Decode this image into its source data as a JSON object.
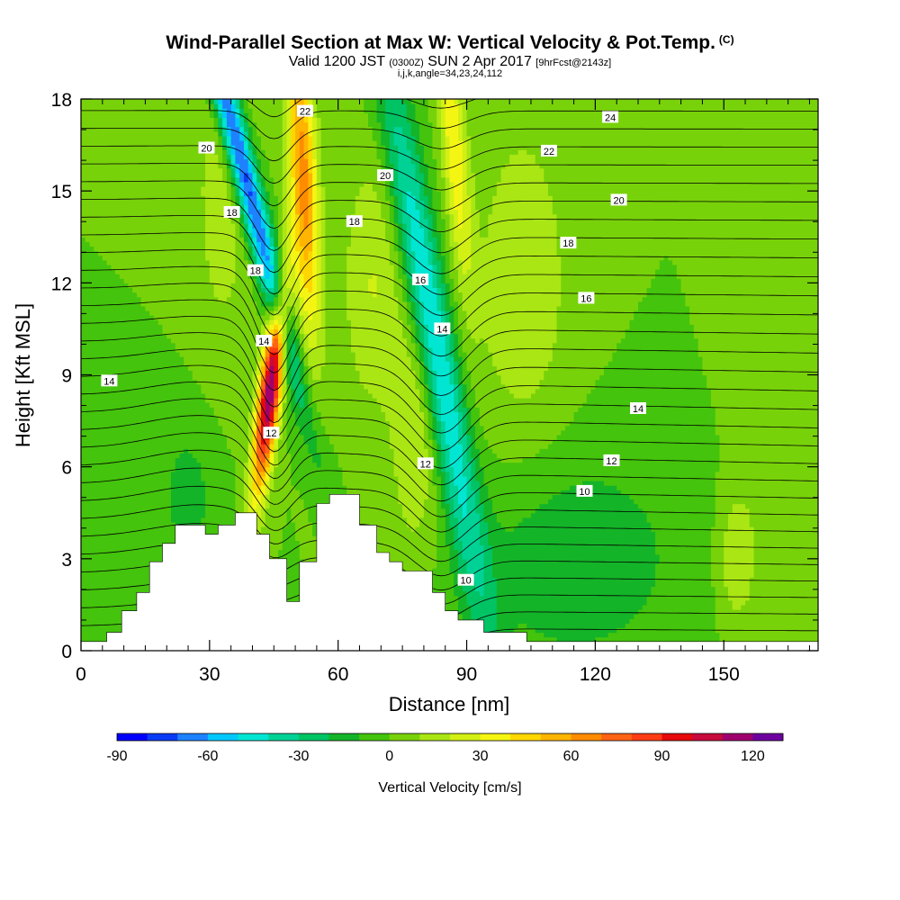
{
  "title": {
    "line1": "Wind-Parallel Section at Max W: Vertical Velocity & Pot.Temp.",
    "line1_mark": "(C)",
    "line2_valid": "Valid 1200 JST",
    "line2_utc": "(0300Z)",
    "line2_date": "SUN 2 Apr 2017",
    "line2_fcst": "[9hrFcst@2143z]",
    "line3": "i,j,k,angle=34,23,24,112"
  },
  "chart_data": {
    "type": "heatmap",
    "title": "Wind-Parallel Section at Max W: Vertical Velocity & Pot.Temp.",
    "xlabel": "Distance [nm]",
    "ylabel": "Height [Kft MSL]",
    "xlim": [
      0,
      172
    ],
    "ylim": [
      0,
      18
    ],
    "x_ticks": [
      0,
      30,
      60,
      90,
      120,
      150
    ],
    "y_ticks": [
      0,
      3,
      6,
      9,
      12,
      15,
      18
    ],
    "shaded_field": "Vertical Velocity [cm/s]",
    "colorbar": {
      "label": "Vertical Velocity [cm/s]",
      "min": -90,
      "max": 130,
      "step": 10,
      "tick_values": [
        -90,
        -60,
        -30,
        0,
        30,
        60,
        90,
        120
      ],
      "colors": [
        "#0000ff",
        "#0a3cf5",
        "#1e82ff",
        "#00c8ff",
        "#00e6d2",
        "#00d296",
        "#00c364",
        "#14b428",
        "#44c40c",
        "#78d20a",
        "#aae614",
        "#d2f014",
        "#f5f514",
        "#ffd700",
        "#ffb400",
        "#ff8c00",
        "#ff6414",
        "#ff3c14",
        "#e60a0a",
        "#c80a3c",
        "#a0006e",
        "#6e00a0"
      ]
    },
    "contour_field": "Potential Temperature [C]",
    "contour_labels": [
      {
        "text": "22",
        "x": 52.3,
        "y": 17.6
      },
      {
        "text": "24",
        "x": 123.5,
        "y": 17.4
      },
      {
        "text": "20",
        "x": 29.3,
        "y": 16.4
      },
      {
        "text": "22",
        "x": 109.2,
        "y": 16.3
      },
      {
        "text": "20",
        "x": 71.0,
        "y": 15.5
      },
      {
        "text": "20",
        "x": 125.5,
        "y": 14.7
      },
      {
        "text": "18",
        "x": 35.2,
        "y": 14.3
      },
      {
        "text": "18",
        "x": 63.8,
        "y": 14.0
      },
      {
        "text": "18",
        "x": 113.7,
        "y": 13.3
      },
      {
        "text": "18",
        "x": 40.7,
        "y": 12.4
      },
      {
        "text": "16",
        "x": 79.2,
        "y": 12.1
      },
      {
        "text": "16",
        "x": 117.9,
        "y": 11.5
      },
      {
        "text": "14",
        "x": 42.7,
        "y": 10.1
      },
      {
        "text": "14",
        "x": 84.3,
        "y": 10.5
      },
      {
        "text": "14",
        "x": 6.6,
        "y": 8.8
      },
      {
        "text": "14",
        "x": 130.0,
        "y": 7.9
      },
      {
        "text": "12",
        "x": 44.4,
        "y": 7.1
      },
      {
        "text": "12",
        "x": 80.4,
        "y": 6.1
      },
      {
        "text": "12",
        "x": 123.8,
        "y": 6.2
      },
      {
        "text": "10",
        "x": 117.5,
        "y": 5.2
      },
      {
        "text": "10",
        "x": 89.8,
        "y": 2.3
      }
    ],
    "terrain_profile": [
      [
        0,
        0.3
      ],
      [
        6,
        0.6
      ],
      [
        9.5,
        1.3
      ],
      [
        13,
        1.9
      ],
      [
        16,
        2.9
      ],
      [
        19,
        3.5
      ],
      [
        22,
        4.1
      ],
      [
        29,
        3.8
      ],
      [
        32,
        4.1
      ],
      [
        36,
        4.5
      ],
      [
        41,
        3.8
      ],
      [
        44,
        3.0
      ],
      [
        48,
        1.6
      ],
      [
        51,
        2.9
      ],
      [
        55,
        4.8
      ],
      [
        58,
        5.1
      ],
      [
        65,
        4.1
      ],
      [
        69,
        3.2
      ],
      [
        72,
        2.9
      ],
      [
        75,
        2.6
      ],
      [
        82,
        1.9
      ],
      [
        85,
        1.3
      ],
      [
        88,
        1.0
      ],
      [
        94,
        0.6
      ],
      [
        104,
        0.3
      ],
      [
        172,
        0.3
      ]
    ]
  }
}
